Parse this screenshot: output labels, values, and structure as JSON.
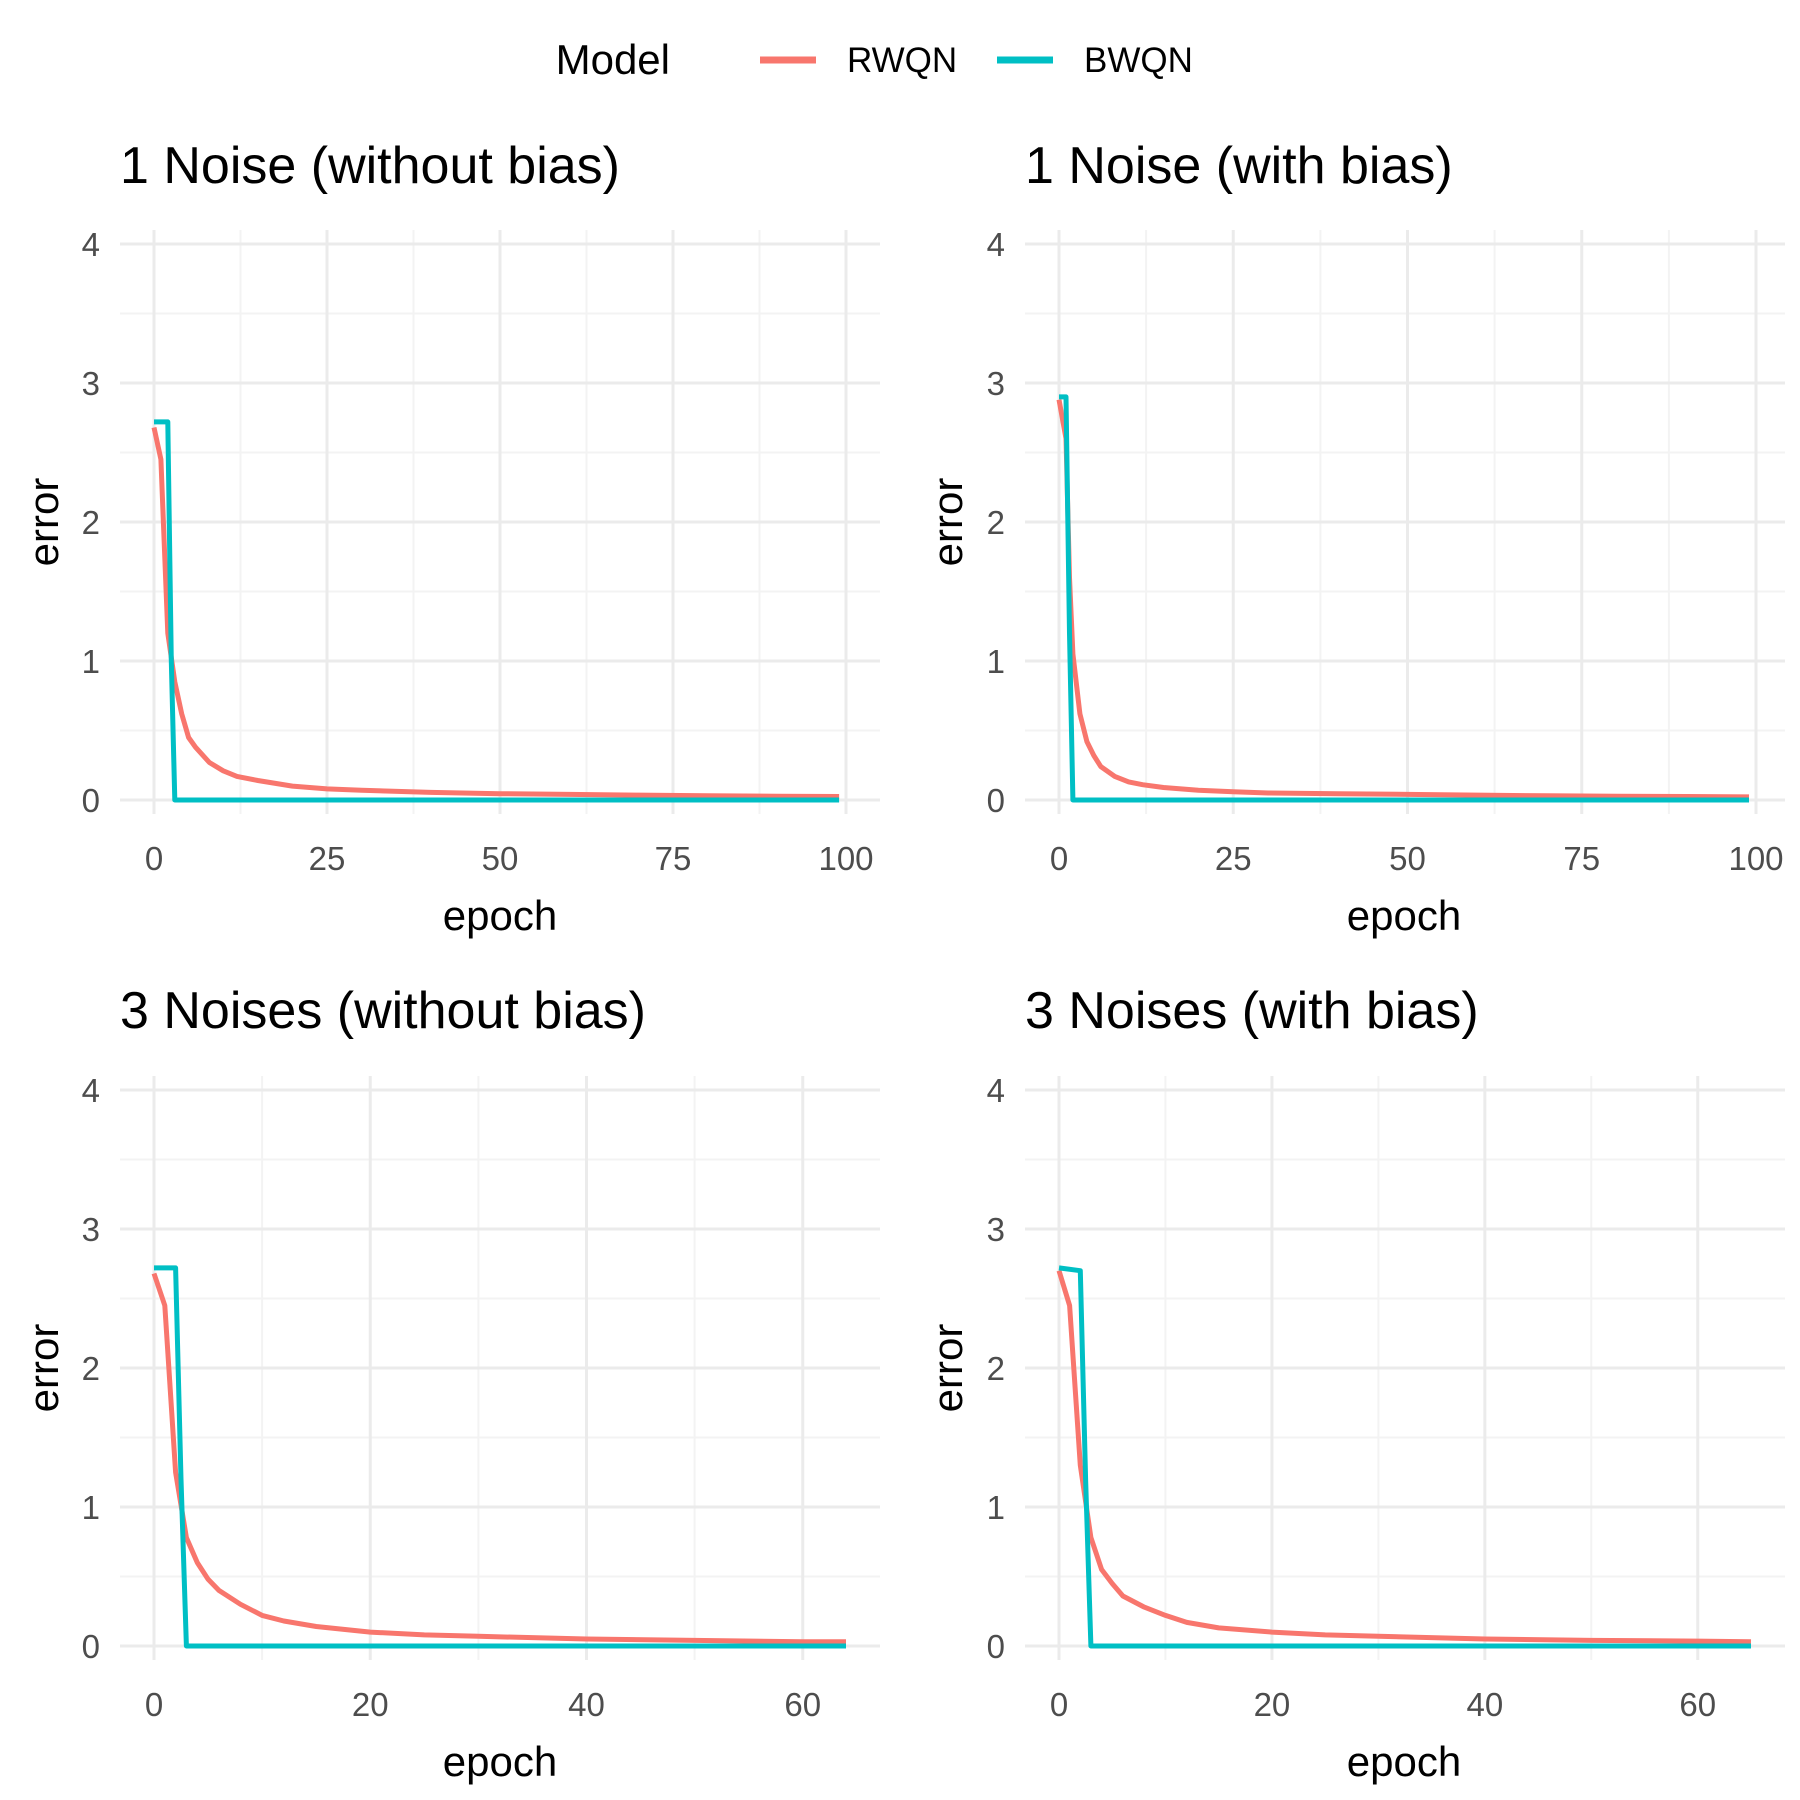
{
  "legend": {
    "title": "Model",
    "entries": [
      {
        "label": "RWQN",
        "color": "#F8766D"
      },
      {
        "label": "BWQN",
        "color": "#00BFC4"
      }
    ]
  },
  "chart_data": [
    {
      "type": "line",
      "title": "1 Noise (without bias)",
      "xlabel": "epoch",
      "ylabel": "error",
      "xlim": [
        0,
        100
      ],
      "ylim": [
        0,
        4
      ],
      "xticks": [
        0,
        25,
        50,
        75,
        100
      ],
      "yticks": [
        0,
        1,
        2,
        3,
        4
      ],
      "grid": true,
      "series": [
        {
          "name": "RWQN",
          "color": "#F8766D",
          "x": [
            0,
            1,
            2,
            3,
            4,
            5,
            6,
            8,
            10,
            12,
            15,
            20,
            25,
            30,
            40,
            50,
            60,
            70,
            80,
            90,
            99
          ],
          "y": [
            2.68,
            2.45,
            1.2,
            0.85,
            0.62,
            0.45,
            0.38,
            0.27,
            0.21,
            0.17,
            0.14,
            0.1,
            0.08,
            0.07,
            0.055,
            0.045,
            0.04,
            0.035,
            0.03,
            0.027,
            0.025
          ]
        },
        {
          "name": "BWQN",
          "color": "#00BFC4",
          "x": [
            0,
            2,
            2.5,
            3,
            99
          ],
          "y": [
            2.72,
            2.72,
            1.0,
            0.0,
            0.0
          ]
        }
      ]
    },
    {
      "type": "line",
      "title": "1 Noise (with bias)",
      "xlabel": "epoch",
      "ylabel": "error",
      "xlim": [
        0,
        100
      ],
      "ylim": [
        0,
        4
      ],
      "xticks": [
        0,
        25,
        50,
        75,
        100
      ],
      "yticks": [
        0,
        1,
        2,
        3,
        4
      ],
      "grid": true,
      "series": [
        {
          "name": "RWQN",
          "color": "#F8766D",
          "x": [
            0,
            1,
            1.5,
            2,
            3,
            4,
            5,
            6,
            8,
            10,
            12,
            15,
            20,
            25,
            30,
            40,
            50,
            60,
            70,
            80,
            90,
            99
          ],
          "y": [
            2.88,
            2.6,
            1.6,
            1.05,
            0.62,
            0.42,
            0.32,
            0.24,
            0.17,
            0.13,
            0.11,
            0.09,
            0.07,
            0.06,
            0.05,
            0.045,
            0.04,
            0.035,
            0.03,
            0.027,
            0.025,
            0.022
          ]
        },
        {
          "name": "BWQN",
          "color": "#00BFC4",
          "x": [
            0,
            1,
            1.5,
            2,
            99
          ],
          "y": [
            2.9,
            2.9,
            1.2,
            0.0,
            0.0
          ]
        }
      ]
    },
    {
      "type": "line",
      "title": "3 Noises (without bias)",
      "xlabel": "epoch",
      "ylabel": "error",
      "xlim": [
        0,
        64
      ],
      "ylim": [
        0,
        4
      ],
      "xticks": [
        0,
        20,
        40,
        60
      ],
      "yticks": [
        0,
        1,
        2,
        3,
        4
      ],
      "grid": true,
      "series": [
        {
          "name": "RWQN",
          "color": "#F8766D",
          "x": [
            0,
            1,
            2,
            3,
            4,
            5,
            6,
            8,
            10,
            12,
            15,
            20,
            25,
            30,
            40,
            50,
            60,
            64
          ],
          "y": [
            2.68,
            2.45,
            1.25,
            0.78,
            0.6,
            0.48,
            0.4,
            0.3,
            0.22,
            0.18,
            0.14,
            0.1,
            0.08,
            0.07,
            0.05,
            0.04,
            0.03,
            0.03
          ]
        },
        {
          "name": "BWQN",
          "color": "#00BFC4",
          "x": [
            0,
            2,
            2.5,
            3,
            64
          ],
          "y": [
            2.72,
            2.72,
            1.2,
            0.0,
            0.0
          ]
        }
      ]
    },
    {
      "type": "line",
      "title": "3 Noises (with bias)",
      "xlabel": "epoch",
      "ylabel": "error",
      "xlim": [
        0,
        65
      ],
      "ylim": [
        0,
        4
      ],
      "xticks": [
        0,
        20,
        40,
        60
      ],
      "yticks": [
        0,
        1,
        2,
        3,
        4
      ],
      "grid": true,
      "series": [
        {
          "name": "RWQN",
          "color": "#F8766D",
          "x": [
            0,
            1,
            2,
            3,
            4,
            5,
            6,
            8,
            10,
            12,
            15,
            20,
            25,
            30,
            40,
            50,
            60,
            65
          ],
          "y": [
            2.7,
            2.45,
            1.3,
            0.78,
            0.55,
            0.45,
            0.36,
            0.28,
            0.22,
            0.17,
            0.13,
            0.1,
            0.08,
            0.07,
            0.05,
            0.04,
            0.035,
            0.03
          ]
        },
        {
          "name": "BWQN",
          "color": "#00BFC4",
          "x": [
            0,
            2,
            2.5,
            3,
            65
          ],
          "y": [
            2.72,
            2.7,
            1.2,
            0.0,
            0.0
          ]
        }
      ]
    }
  ]
}
